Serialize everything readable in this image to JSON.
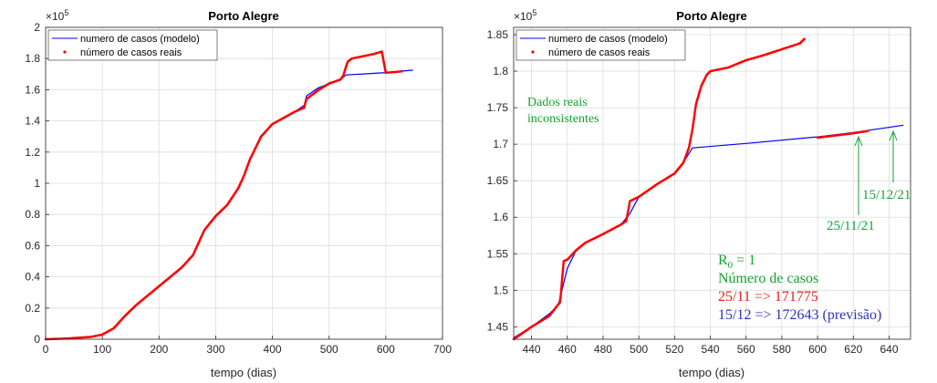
{
  "chart_data": [
    {
      "type": "scatter",
      "title": "Porto Alegre",
      "xlabel": "tempo (dias)",
      "ylabel": "",
      "y_exponent_label": "×10",
      "y_exponent_power": "5",
      "xlim": [
        0,
        700
      ],
      "ylim": [
        0,
        2
      ],
      "xticks": [
        0,
        100,
        200,
        300,
        400,
        500,
        600,
        700
      ],
      "yticks": [
        0,
        0.2,
        0.4,
        0.6,
        0.8,
        1,
        1.2,
        1.4,
        1.6,
        1.8,
        2
      ],
      "grid": true,
      "legend_position": "top-left",
      "series": [
        {
          "name": "numero de casos (modelo)",
          "style": "line",
          "color": "#0000ff",
          "x": [
            0,
            40,
            80,
            100,
            120,
            140,
            160,
            180,
            200,
            220,
            240,
            260,
            270,
            280,
            300,
            320,
            340,
            350,
            360,
            380,
            400,
            420,
            440,
            456,
            460,
            480,
            500,
            520,
            530,
            540,
            560,
            600,
            648
          ],
          "y": [
            0,
            0.005,
            0.015,
            0.03,
            0.07,
            0.15,
            0.22,
            0.28,
            0.34,
            0.4,
            0.46,
            0.54,
            0.62,
            0.7,
            0.79,
            0.86,
            0.97,
            1.05,
            1.15,
            1.3,
            1.38,
            1.42,
            1.46,
            1.5,
            1.56,
            1.61,
            1.64,
            1.665,
            1.695,
            1.697,
            1.701,
            1.71,
            1.726
          ]
        },
        {
          "name": "número de casos reais",
          "style": "points",
          "color": "#ff0000",
          "x": [
            0,
            40,
            80,
            100,
            120,
            140,
            160,
            180,
            200,
            220,
            240,
            260,
            270,
            280,
            300,
            320,
            340,
            350,
            360,
            380,
            400,
            420,
            440,
            456,
            460,
            480,
            500,
            520,
            525,
            530,
            533,
            540,
            560,
            580,
            593,
            600,
            610,
            620,
            628
          ],
          "y": [
            0,
            0.005,
            0.015,
            0.03,
            0.07,
            0.15,
            0.22,
            0.28,
            0.34,
            0.4,
            0.46,
            0.54,
            0.62,
            0.7,
            0.79,
            0.86,
            0.97,
            1.05,
            1.15,
            1.3,
            1.38,
            1.42,
            1.46,
            1.485,
            1.54,
            1.595,
            1.64,
            1.665,
            1.69,
            1.75,
            1.78,
            1.8,
            1.815,
            1.83,
            1.845,
            1.709,
            1.712,
            1.715,
            1.718
          ]
        }
      ]
    },
    {
      "type": "scatter",
      "title": "Porto Alegre",
      "xlabel": "tempo (dias)",
      "ylabel": "",
      "y_exponent_label": "×10",
      "y_exponent_power": "5",
      "xlim": [
        430,
        652
      ],
      "ylim": [
        1.433,
        1.86
      ],
      "xticks": [
        440,
        460,
        480,
        500,
        520,
        540,
        560,
        580,
        600,
        620,
        640
      ],
      "yticks": [
        1.45,
        1.5,
        1.55,
        1.6,
        1.65,
        1.7,
        1.75,
        1.8,
        1.85
      ],
      "grid": true,
      "legend_position": "top-left",
      "series": [
        {
          "name": "numero de casos (modelo)",
          "style": "line",
          "color": "#0000ff",
          "x": [
            430,
            440,
            450,
            455,
            460,
            465,
            470,
            480,
            490,
            495,
            500,
            510,
            520,
            525,
            530,
            560,
            600,
            620,
            648
          ],
          "y": [
            1.435,
            1.45,
            1.468,
            1.48,
            1.53,
            1.555,
            1.565,
            1.577,
            1.59,
            1.605,
            1.628,
            1.645,
            1.66,
            1.675,
            1.695,
            1.701,
            1.71,
            1.716,
            1.726
          ]
        },
        {
          "name": "número de casos reais",
          "style": "points",
          "color": "#ff0000",
          "x": [
            430,
            440,
            450,
            456,
            458,
            460,
            465,
            470,
            480,
            490,
            493,
            495,
            500,
            510,
            520,
            525,
            528,
            530,
            532,
            535,
            538,
            540,
            550,
            560,
            570,
            580,
            590,
            593,
            600,
            610,
            620,
            628
          ],
          "y": [
            1.433,
            1.45,
            1.465,
            1.484,
            1.54,
            1.542,
            1.555,
            1.565,
            1.577,
            1.59,
            1.595,
            1.622,
            1.628,
            1.645,
            1.66,
            1.675,
            1.695,
            1.72,
            1.755,
            1.78,
            1.795,
            1.8,
            1.805,
            1.815,
            1.822,
            1.83,
            1.838,
            1.845,
            1.709,
            1.712,
            1.715,
            1.718
          ]
        }
      ],
      "annotations": {
        "inconsistent_line1": "Dados reais",
        "inconsistent_line2": "inconsistentes",
        "date1": "25/11/21",
        "date2": "15/12/21",
        "r0": "R",
        "r0_sub": "0",
        "r0_value": " = 1",
        "cases_title": "Número de casos",
        "cases_real": "25/11 => 171775",
        "cases_forecast": "15/12 => 172643 (previsão)",
        "colors": {
          "green": "#12a332",
          "red": "#e2211c",
          "blue": "#2a35b8"
        }
      }
    }
  ]
}
